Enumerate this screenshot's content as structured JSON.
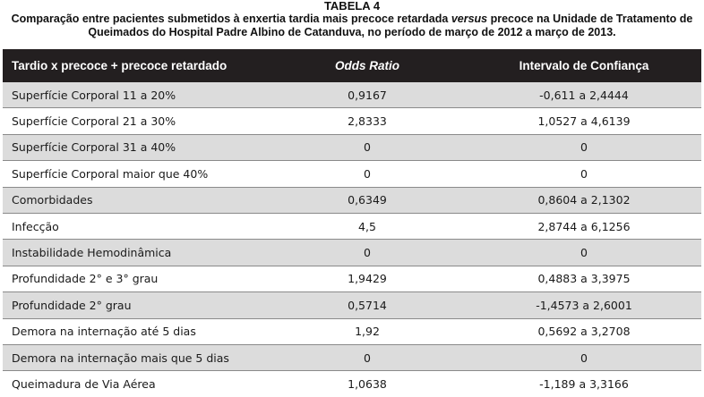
{
  "caption": {
    "label": "TABELA 4",
    "text_before_italic": "Comparação entre pacientes submetidos à enxertia tardia mais precoce retardada ",
    "italic_word": "versus",
    "text_after_italic": " precoce na Unidade de Tratamento de Queimados do Hospital Padre Albino de Catanduva, no período de março de 2012 a março de 2013."
  },
  "table": {
    "headers": [
      "Tardio x precoce + precoce retardado",
      "Odds Ratio",
      "Intervalo de Confiança"
    ],
    "rows": [
      [
        "Superfície Corporal 11 a 20%",
        "0,9167",
        "-0,611 a 2,4444"
      ],
      [
        "Superfície Corporal 21 a 30%",
        "2,8333",
        "1,0527 a 4,6139"
      ],
      [
        "Superfície Corporal 31 a 40%",
        "0",
        "0"
      ],
      [
        "Superfície Corporal maior que 40%",
        "0",
        "0"
      ],
      [
        "Comorbidades",
        "0,6349",
        "0,8604 a 2,1302"
      ],
      [
        "Infecção",
        "4,5",
        "2,8744 a 6,1256"
      ],
      [
        "Instabilidade Hemodinâmica",
        "0",
        "0"
      ],
      [
        "Profundidade 2° e 3° grau",
        "1,9429",
        "0,4883 a 3,3975"
      ],
      [
        "Profundidade 2° grau",
        "0,5714",
        "-1,4573 a 2,6001"
      ],
      [
        "Demora na internação até 5 dias",
        "1,92",
        "0,5692 a 3,2708"
      ],
      [
        "Demora na internação mais que 5 dias",
        "0",
        "0"
      ],
      [
        "Queimadura de Via Aérea",
        "1,0638",
        "-1,189 a 3,3166"
      ]
    ]
  },
  "colors": {
    "header_background": "#231f20",
    "header_text": "#ffffff",
    "row_shaded": "#dcdcdc",
    "row_plain": "#ffffff"
  }
}
